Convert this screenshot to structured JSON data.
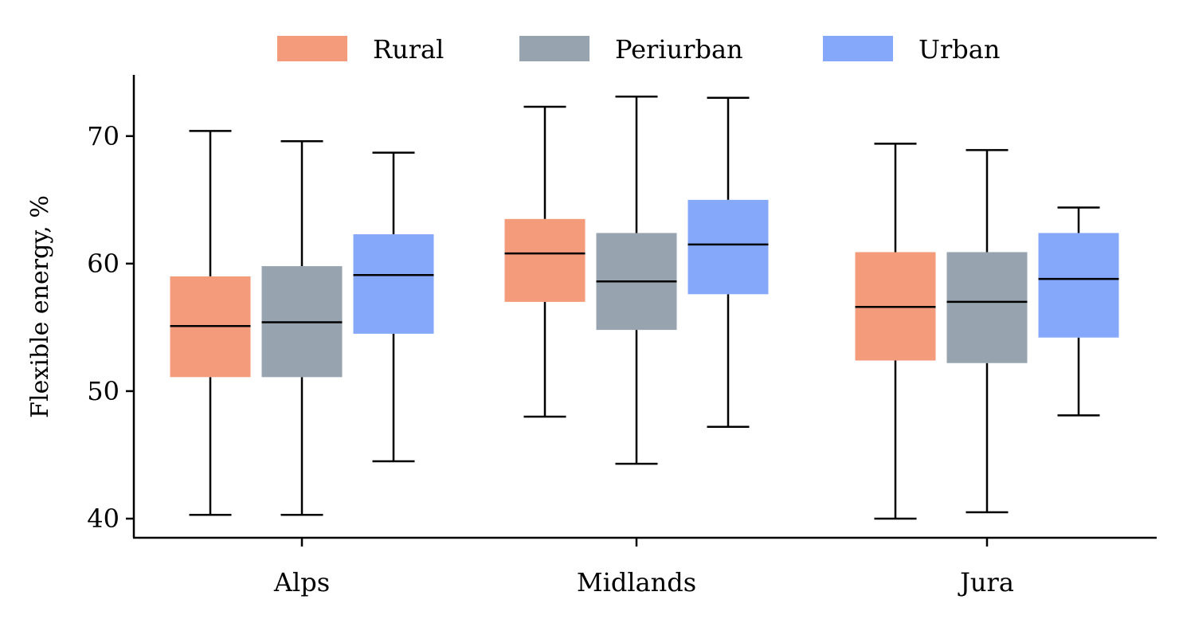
{
  "chart_data": {
    "type": "box",
    "categories": [
      "Alps",
      "Midlands",
      "Jura"
    ],
    "ylabel": "Flexible energy, %",
    "xlabel": "",
    "ylim": [
      38.5,
      74.8
    ],
    "yticks": [
      40,
      50,
      60,
      70
    ],
    "grid": false,
    "legend": {
      "position": "top-center",
      "columns": 3
    },
    "series": [
      {
        "name": "Rural",
        "color": "#f39b7b",
        "boxes": [
          {
            "whisker_low": 40.3,
            "q1": 51.1,
            "median": 55.1,
            "q3": 59.0,
            "whisker_high": 70.4
          },
          {
            "whisker_low": 48.0,
            "q1": 57.0,
            "median": 60.8,
            "q3": 63.5,
            "whisker_high": 72.3
          },
          {
            "whisker_low": 40.0,
            "q1": 52.4,
            "median": 56.6,
            "q3": 60.9,
            "whisker_high": 69.4
          }
        ]
      },
      {
        "name": "Periurban",
        "color": "#97a3ae",
        "boxes": [
          {
            "whisker_low": 40.3,
            "q1": 51.1,
            "median": 55.4,
            "q3": 59.8,
            "whisker_high": 69.6
          },
          {
            "whisker_low": 44.3,
            "q1": 54.8,
            "median": 58.6,
            "q3": 62.4,
            "whisker_high": 73.1
          },
          {
            "whisker_low": 40.5,
            "q1": 52.2,
            "median": 57.0,
            "q3": 60.9,
            "whisker_high": 68.9
          }
        ]
      },
      {
        "name": "Urban",
        "color": "#86a8fb",
        "boxes": [
          {
            "whisker_low": 44.5,
            "q1": 54.5,
            "median": 59.1,
            "q3": 62.3,
            "whisker_high": 68.7
          },
          {
            "whisker_low": 47.2,
            "q1": 57.6,
            "median": 61.5,
            "q3": 65.0,
            "whisker_high": 73.0
          },
          {
            "whisker_low": 48.1,
            "q1": 54.2,
            "median": 58.8,
            "q3": 62.4,
            "whisker_high": 64.4
          }
        ]
      }
    ]
  }
}
